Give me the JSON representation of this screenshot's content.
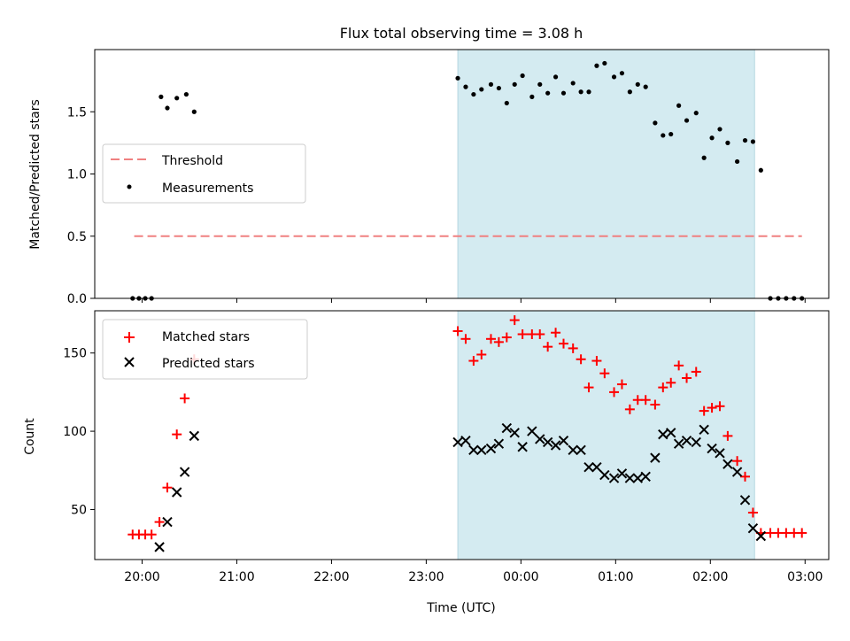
{
  "chart_data": [
    {
      "type": "scatter",
      "title": "Flux total observing time = 3.08 h",
      "ylabel": "Matched/Predicted stars",
      "xlabel": "",
      "xlim": [
        "19:30",
        "03:15"
      ],
      "ylim": [
        0,
        2.0
      ],
      "yticks": [
        "0.0",
        "0.5",
        "1.0",
        "1.5"
      ],
      "grid": false,
      "legend_position": "center-left",
      "shaded_region": [
        "23:20",
        "02:28"
      ],
      "shade_color": "#d4ebf1",
      "threshold": {
        "name": "Threshold",
        "y": 0.5,
        "x_start": "19:55",
        "x_end": "02:58",
        "color": "#f08080"
      },
      "series": [
        {
          "name": "Measurements",
          "color": "#000000",
          "points": [
            [
              "19:54",
              0
            ],
            [
              "19:58",
              0
            ],
            [
              "20:02",
              0
            ],
            [
              "20:06",
              0
            ],
            [
              "20:12",
              1.62
            ],
            [
              "20:16",
              1.53
            ],
            [
              "20:22",
              1.61
            ],
            [
              "20:28",
              1.64
            ],
            [
              "20:33",
              1.5
            ],
            [
              "23:20",
              1.77
            ],
            [
              "23:25",
              1.7
            ],
            [
              "23:30",
              1.64
            ],
            [
              "23:35",
              1.68
            ],
            [
              "23:41",
              1.72
            ],
            [
              "23:46",
              1.69
            ],
            [
              "23:51",
              1.57
            ],
            [
              "23:56",
              1.72
            ],
            [
              "00:01",
              1.79
            ],
            [
              "00:07",
              1.62
            ],
            [
              "00:12",
              1.72
            ],
            [
              "00:17",
              1.65
            ],
            [
              "00:22",
              1.78
            ],
            [
              "00:27",
              1.65
            ],
            [
              "00:33",
              1.73
            ],
            [
              "00:38",
              1.66
            ],
            [
              "00:43",
              1.66
            ],
            [
              "00:48",
              1.87
            ],
            [
              "00:53",
              1.89
            ],
            [
              "00:59",
              1.78
            ],
            [
              "01:04",
              1.81
            ],
            [
              "01:09",
              1.66
            ],
            [
              "01:14",
              1.72
            ],
            [
              "01:19",
              1.7
            ],
            [
              "01:25",
              1.41
            ],
            [
              "01:30",
              1.31
            ],
            [
              "01:35",
              1.32
            ],
            [
              "01:40",
              1.55
            ],
            [
              "01:45",
              1.43
            ],
            [
              "01:51",
              1.49
            ],
            [
              "01:56",
              1.13
            ],
            [
              "02:01",
              1.29
            ],
            [
              "02:06",
              1.36
            ],
            [
              "02:11",
              1.25
            ],
            [
              "02:17",
              1.1
            ],
            [
              "02:22",
              1.27
            ],
            [
              "02:27",
              1.26
            ],
            [
              "02:32",
              1.03
            ],
            [
              "02:38",
              0
            ],
            [
              "02:43",
              0
            ],
            [
              "02:48",
              0
            ],
            [
              "02:53",
              0
            ],
            [
              "02:58",
              0
            ]
          ]
        }
      ]
    },
    {
      "type": "scatter",
      "title": "",
      "ylabel": "Count",
      "xlabel": "Time (UTC)",
      "xlim": [
        "19:30",
        "03:15"
      ],
      "ylim": [
        18,
        177
      ],
      "yticks": [
        "50",
        "100",
        "150"
      ],
      "xticks": [
        "20:00",
        "21:00",
        "22:00",
        "23:00",
        "00:00",
        "01:00",
        "02:00",
        "03:00"
      ],
      "grid": false,
      "legend_position": "top-left",
      "shaded_region": [
        "23:20",
        "02:28"
      ],
      "shade_color": "#d4ebf1",
      "series": [
        {
          "name": "Matched stars",
          "marker": "plus",
          "color": "#ff0000",
          "points": [
            [
              "19:54",
              34
            ],
            [
              "19:58",
              34
            ],
            [
              "20:02",
              34
            ],
            [
              "20:06",
              34
            ],
            [
              "20:11",
              42
            ],
            [
              "20:16",
              64
            ],
            [
              "20:22",
              98
            ],
            [
              "20:27",
              121
            ],
            [
              "20:33",
              146
            ],
            [
              "23:20",
              164
            ],
            [
              "23:25",
              159
            ],
            [
              "23:30",
              145
            ],
            [
              "23:35",
              149
            ],
            [
              "23:41",
              159
            ],
            [
              "23:46",
              157
            ],
            [
              "23:51",
              160
            ],
            [
              "23:56",
              171
            ],
            [
              "00:01",
              162
            ],
            [
              "00:07",
              162
            ],
            [
              "00:12",
              162
            ],
            [
              "00:17",
              154
            ],
            [
              "00:22",
              163
            ],
            [
              "00:27",
              156
            ],
            [
              "00:33",
              153
            ],
            [
              "00:38",
              146
            ],
            [
              "00:43",
              128
            ],
            [
              "00:48",
              145
            ],
            [
              "00:53",
              137
            ],
            [
              "00:59",
              125
            ],
            [
              "01:04",
              130
            ],
            [
              "01:09",
              114
            ],
            [
              "01:14",
              120
            ],
            [
              "01:19",
              120
            ],
            [
              "01:25",
              117
            ],
            [
              "01:30",
              128
            ],
            [
              "01:35",
              131
            ],
            [
              "01:40",
              142
            ],
            [
              "01:45",
              134
            ],
            [
              "01:51",
              138
            ],
            [
              "01:56",
              113
            ],
            [
              "02:01",
              115
            ],
            [
              "02:06",
              116
            ],
            [
              "02:11",
              97
            ],
            [
              "02:17",
              81
            ],
            [
              "02:22",
              71
            ],
            [
              "02:27",
              48
            ],
            [
              "02:32",
              35
            ],
            [
              "02:38",
              35
            ],
            [
              "02:43",
              35
            ],
            [
              "02:48",
              35
            ],
            [
              "02:53",
              35
            ],
            [
              "02:58",
              35
            ]
          ]
        },
        {
          "name": "Predicted stars",
          "marker": "x",
          "color": "#000000",
          "points": [
            [
              "20:11",
              26
            ],
            [
              "20:16",
              42
            ],
            [
              "20:22",
              61
            ],
            [
              "20:27",
              74
            ],
            [
              "20:33",
              97
            ],
            [
              "23:20",
              93
            ],
            [
              "23:25",
              94
            ],
            [
              "23:30",
              88
            ],
            [
              "23:35",
              88
            ],
            [
              "23:41",
              89
            ],
            [
              "23:46",
              92
            ],
            [
              "23:51",
              102
            ],
            [
              "23:56",
              99
            ],
            [
              "00:01",
              90
            ],
            [
              "00:07",
              100
            ],
            [
              "00:12",
              95
            ],
            [
              "00:17",
              93
            ],
            [
              "00:22",
              91
            ],
            [
              "00:27",
              94
            ],
            [
              "00:33",
              88
            ],
            [
              "00:38",
              88
            ],
            [
              "00:43",
              77
            ],
            [
              "00:48",
              77
            ],
            [
              "00:53",
              72
            ],
            [
              "00:59",
              70
            ],
            [
              "01:04",
              73
            ],
            [
              "01:09",
              70
            ],
            [
              "01:14",
              70
            ],
            [
              "01:19",
              71
            ],
            [
              "01:25",
              83
            ],
            [
              "01:30",
              98
            ],
            [
              "01:35",
              99
            ],
            [
              "01:40",
              92
            ],
            [
              "01:45",
              94
            ],
            [
              "01:51",
              93
            ],
            [
              "01:56",
              101
            ],
            [
              "02:01",
              89
            ],
            [
              "02:06",
              86
            ],
            [
              "02:11",
              79
            ],
            [
              "02:17",
              74
            ],
            [
              "02:22",
              56
            ],
            [
              "02:27",
              38
            ],
            [
              "02:32",
              33
            ]
          ]
        }
      ]
    }
  ]
}
